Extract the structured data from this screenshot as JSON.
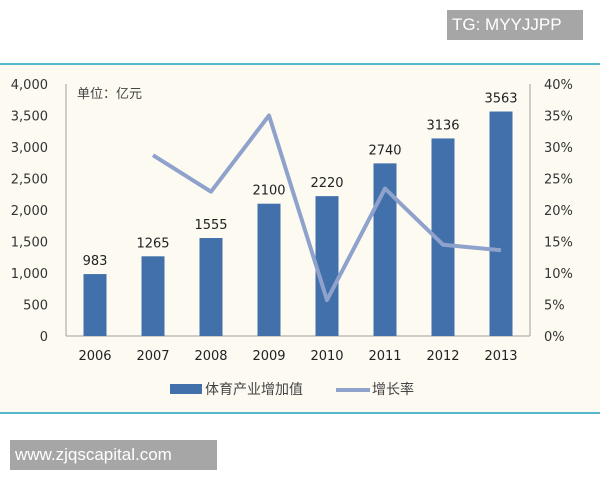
{
  "watermarks": {
    "top": "TG: MYYJJPP",
    "bottom": "www.zjqscapital.com"
  },
  "colors": {
    "bar": "#4170aa",
    "line": "#8fa2cb",
    "panel_bg": "#fdfaf1",
    "border": "#57b7cb",
    "watermark_bg": "#a6a6a6"
  },
  "chart": {
    "unit_label": "单位：亿元",
    "left_axis_ticks": [
      "0",
      "500",
      "1,000",
      "1,500",
      "2,000",
      "2,500",
      "3,000",
      "3,500",
      "4,000"
    ],
    "right_axis_ticks": [
      "0%",
      "5%",
      "10%",
      "15%",
      "20%",
      "25%",
      "30%",
      "35%",
      "40%"
    ],
    "legend": {
      "bar_label": "体育产业增加值",
      "line_label": "增长率"
    }
  },
  "chart_data": {
    "type": "bar",
    "title": "",
    "unit": "单位：亿元",
    "categories": [
      "2006",
      "2007",
      "2008",
      "2009",
      "2010",
      "2011",
      "2012",
      "2013"
    ],
    "series": [
      {
        "name": "体育产业增加值",
        "type": "bar",
        "axis": "left",
        "values": [
          983,
          1265,
          1555,
          2100,
          2220,
          2740,
          3136,
          3563
        ],
        "data_labels": [
          "983",
          "1265",
          "1555",
          "2100",
          "2220",
          "2740",
          "3136",
          "3563"
        ]
      },
      {
        "name": "增长率",
        "type": "line",
        "axis": "right",
        "values": [
          null,
          28.7,
          22.9,
          35.0,
          5.7,
          23.4,
          14.5,
          13.6
        ],
        "unit": "%"
      }
    ],
    "xlabel": "",
    "ylabel": "",
    "ylim": [
      0,
      4000
    ],
    "y2lim": [
      0,
      40
    ],
    "y_ticks": [
      0,
      500,
      1000,
      1500,
      2000,
      2500,
      3000,
      3500,
      4000
    ],
    "y2_ticks": [
      0,
      5,
      10,
      15,
      20,
      25,
      30,
      35,
      40
    ],
    "grid": false,
    "legend_position": "bottom"
  }
}
